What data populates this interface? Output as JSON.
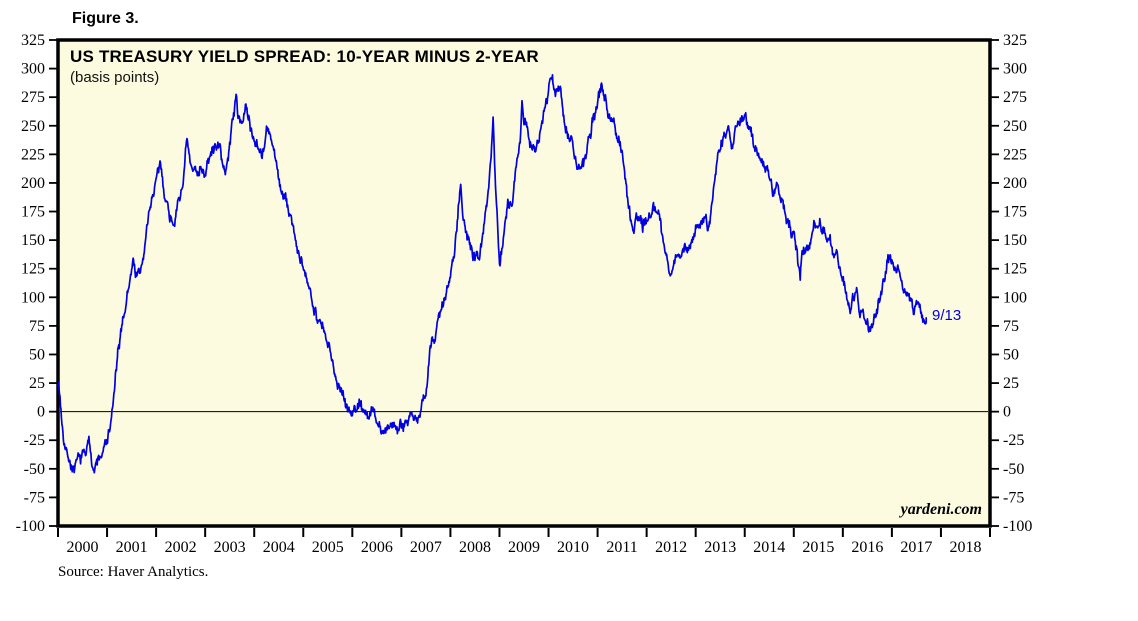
{
  "figure_label": "Figure 3.",
  "source_note": "Source: Haver Analytics.",
  "watermark": "yardeni.com",
  "annotation": "9/13",
  "colors": {
    "line": "#0000e0",
    "plot_bg": "#fcfbe0",
    "border": "#000000",
    "annotation_text": "#0000dd"
  },
  "chart_data": {
    "type": "line",
    "title": "US TREASURY YIELD SPREAD: 10-YEAR MINUS 2-YEAR",
    "subtitle": "(basis points)",
    "ylabel": "basis points",
    "x_range": [
      2000,
      2019
    ],
    "y_range": [
      -100,
      325
    ],
    "y_tick_step": 25,
    "grid": false,
    "zero_line": true,
    "legend_position": "none",
    "y_ticks": [
      325,
      300,
      275,
      250,
      225,
      200,
      175,
      150,
      125,
      100,
      75,
      50,
      25,
      0,
      -25,
      -50,
      -75,
      -100
    ],
    "x_tick_labels": [
      "2000",
      "2001",
      "2002",
      "2003",
      "2004",
      "2005",
      "2006",
      "2007",
      "2008",
      "2009",
      "2010",
      "2011",
      "2012",
      "2013",
      "2014",
      "2015",
      "2016",
      "2017",
      "2018"
    ],
    "last_point_label": "9/13",
    "last_point_value": 82,
    "series": [
      {
        "name": "US Treasury 10-Year Minus 2-Year Yield Spread",
        "points": [
          [
            2000.0,
            28
          ],
          [
            2000.04,
            12
          ],
          [
            2000.08,
            -8
          ],
          [
            2000.13,
            -22
          ],
          [
            2000.17,
            -30
          ],
          [
            2000.25,
            -42
          ],
          [
            2000.33,
            -50
          ],
          [
            2000.42,
            -46
          ],
          [
            2000.5,
            -41
          ],
          [
            2000.58,
            -34
          ],
          [
            2000.63,
            -27
          ],
          [
            2000.67,
            -34
          ],
          [
            2000.71,
            -44
          ],
          [
            2000.75,
            -49
          ],
          [
            2000.83,
            -42
          ],
          [
            2000.92,
            -36
          ],
          [
            2001.0,
            -27
          ],
          [
            2001.08,
            -10
          ],
          [
            2001.13,
            8
          ],
          [
            2001.17,
            28
          ],
          [
            2001.25,
            55
          ],
          [
            2001.33,
            82
          ],
          [
            2001.42,
            105
          ],
          [
            2001.5,
            122
          ],
          [
            2001.54,
            133
          ],
          [
            2001.58,
            124
          ],
          [
            2001.67,
            118
          ],
          [
            2001.75,
            140
          ],
          [
            2001.83,
            163
          ],
          [
            2001.92,
            188
          ],
          [
            2002.0,
            203
          ],
          [
            2002.08,
            210
          ],
          [
            2002.17,
            194
          ],
          [
            2002.25,
            179
          ],
          [
            2002.33,
            168
          ],
          [
            2002.42,
            176
          ],
          [
            2002.5,
            190
          ],
          [
            2002.58,
            214
          ],
          [
            2002.63,
            236
          ],
          [
            2002.67,
            219
          ],
          [
            2002.75,
            204
          ],
          [
            2002.83,
            211
          ],
          [
            2002.92,
            219
          ],
          [
            2003.0,
            209
          ],
          [
            2003.08,
            219
          ],
          [
            2003.17,
            228
          ],
          [
            2003.25,
            237
          ],
          [
            2003.33,
            224
          ],
          [
            2003.42,
            204
          ],
          [
            2003.5,
            234
          ],
          [
            2003.58,
            264
          ],
          [
            2003.63,
            273
          ],
          [
            2003.67,
            261
          ],
          [
            2003.75,
            254
          ],
          [
            2003.83,
            266
          ],
          [
            2003.92,
            249
          ],
          [
            2004.0,
            241
          ],
          [
            2004.08,
            237
          ],
          [
            2004.17,
            229
          ],
          [
            2004.25,
            246
          ],
          [
            2004.33,
            239
          ],
          [
            2004.42,
            219
          ],
          [
            2004.5,
            204
          ],
          [
            2004.58,
            189
          ],
          [
            2004.67,
            179
          ],
          [
            2004.75,
            169
          ],
          [
            2004.83,
            154
          ],
          [
            2004.92,
            134
          ],
          [
            2005.0,
            119
          ],
          [
            2005.08,
            109
          ],
          [
            2005.17,
            104
          ],
          [
            2005.25,
            94
          ],
          [
            2005.33,
            79
          ],
          [
            2005.42,
            69
          ],
          [
            2005.5,
            54
          ],
          [
            2005.58,
            44
          ],
          [
            2005.67,
            34
          ],
          [
            2005.75,
            24
          ],
          [
            2005.83,
            17
          ],
          [
            2005.92,
            4
          ],
          [
            2006.0,
            -3
          ],
          [
            2006.08,
            3
          ],
          [
            2006.17,
            9
          ],
          [
            2006.25,
            2
          ],
          [
            2006.33,
            -5
          ],
          [
            2006.42,
            -2
          ],
          [
            2006.5,
            -7
          ],
          [
            2006.58,
            -12
          ],
          [
            2006.67,
            -17
          ],
          [
            2006.75,
            -14
          ],
          [
            2006.83,
            -10
          ],
          [
            2006.92,
            -14
          ],
          [
            2007.0,
            -10
          ],
          [
            2007.08,
            -7
          ],
          [
            2007.17,
            -1
          ],
          [
            2007.21,
            4
          ],
          [
            2007.25,
            -3
          ],
          [
            2007.33,
            -9
          ],
          [
            2007.42,
            4
          ],
          [
            2007.5,
            19
          ],
          [
            2007.54,
            34
          ],
          [
            2007.58,
            50
          ],
          [
            2007.63,
            63
          ],
          [
            2007.67,
            54
          ],
          [
            2007.71,
            67
          ],
          [
            2007.75,
            76
          ],
          [
            2007.83,
            94
          ],
          [
            2007.92,
            101
          ],
          [
            2008.0,
            124
          ],
          [
            2008.08,
            144
          ],
          [
            2008.17,
            184
          ],
          [
            2008.21,
            206
          ],
          [
            2008.25,
            181
          ],
          [
            2008.33,
            156
          ],
          [
            2008.42,
            141
          ],
          [
            2008.5,
            131
          ],
          [
            2008.58,
            139
          ],
          [
            2008.67,
            151
          ],
          [
            2008.75,
            184
          ],
          [
            2008.83,
            229
          ],
          [
            2008.87,
            257
          ],
          [
            2008.92,
            201
          ],
          [
            2009.0,
            131
          ],
          [
            2009.08,
            151
          ],
          [
            2009.17,
            189
          ],
          [
            2009.25,
            184
          ],
          [
            2009.33,
            214
          ],
          [
            2009.42,
            247
          ],
          [
            2009.46,
            269
          ],
          [
            2009.5,
            256
          ],
          [
            2009.58,
            246
          ],
          [
            2009.67,
            236
          ],
          [
            2009.75,
            229
          ],
          [
            2009.83,
            244
          ],
          [
            2009.92,
            266
          ],
          [
            2010.0,
            281
          ],
          [
            2010.08,
            287
          ],
          [
            2010.17,
            276
          ],
          [
            2010.25,
            281
          ],
          [
            2010.33,
            256
          ],
          [
            2010.42,
            246
          ],
          [
            2010.5,
            231
          ],
          [
            2010.58,
            216
          ],
          [
            2010.67,
            211
          ],
          [
            2010.75,
            216
          ],
          [
            2010.83,
            236
          ],
          [
            2010.92,
            261
          ],
          [
            2011.0,
            271
          ],
          [
            2011.08,
            284
          ],
          [
            2011.17,
            271
          ],
          [
            2011.25,
            261
          ],
          [
            2011.33,
            256
          ],
          [
            2011.42,
            241
          ],
          [
            2011.5,
            226
          ],
          [
            2011.58,
            199
          ],
          [
            2011.63,
            181
          ],
          [
            2011.67,
            171
          ],
          [
            2011.75,
            164
          ],
          [
            2011.83,
            176
          ],
          [
            2011.92,
            164
          ],
          [
            2012.0,
            169
          ],
          [
            2012.08,
            173
          ],
          [
            2012.17,
            181
          ],
          [
            2012.25,
            174
          ],
          [
            2012.33,
            154
          ],
          [
            2012.42,
            134
          ],
          [
            2012.5,
            121
          ],
          [
            2012.58,
            131
          ],
          [
            2012.67,
            141
          ],
          [
            2012.75,
            146
          ],
          [
            2012.83,
            139
          ],
          [
            2012.92,
            149
          ],
          [
            2013.0,
            159
          ],
          [
            2013.08,
            166
          ],
          [
            2013.17,
            171
          ],
          [
            2013.25,
            161
          ],
          [
            2013.33,
            176
          ],
          [
            2013.42,
            211
          ],
          [
            2013.5,
            226
          ],
          [
            2013.58,
            241
          ],
          [
            2013.67,
            247
          ],
          [
            2013.75,
            231
          ],
          [
            2013.83,
            246
          ],
          [
            2013.92,
            256
          ],
          [
            2014.0,
            263
          ],
          [
            2014.08,
            246
          ],
          [
            2014.17,
            236
          ],
          [
            2014.25,
            229
          ],
          [
            2014.33,
            221
          ],
          [
            2014.42,
            216
          ],
          [
            2014.5,
            206
          ],
          [
            2014.58,
            196
          ],
          [
            2014.67,
            199
          ],
          [
            2014.75,
            186
          ],
          [
            2014.83,
            176
          ],
          [
            2014.92,
            161
          ],
          [
            2015.0,
            149
          ],
          [
            2015.08,
            129
          ],
          [
            2015.13,
            121
          ],
          [
            2015.17,
            137
          ],
          [
            2015.25,
            144
          ],
          [
            2015.33,
            154
          ],
          [
            2015.42,
            169
          ],
          [
            2015.5,
            172
          ],
          [
            2015.58,
            161
          ],
          [
            2015.67,
            151
          ],
          [
            2015.75,
            146
          ],
          [
            2015.83,
            139
          ],
          [
            2015.92,
            131
          ],
          [
            2016.0,
            121
          ],
          [
            2016.08,
            104
          ],
          [
            2016.17,
            96
          ],
          [
            2016.25,
            104
          ],
          [
            2016.33,
            94
          ],
          [
            2016.42,
            87
          ],
          [
            2016.5,
            79
          ],
          [
            2016.58,
            76
          ],
          [
            2016.67,
            84
          ],
          [
            2016.75,
            96
          ],
          [
            2016.83,
            111
          ],
          [
            2016.92,
            129
          ],
          [
            2017.0,
            126
          ],
          [
            2017.08,
            121
          ],
          [
            2017.17,
            114
          ],
          [
            2017.25,
            109
          ],
          [
            2017.33,
            99
          ],
          [
            2017.42,
            91
          ],
          [
            2017.5,
            94
          ],
          [
            2017.58,
            84
          ],
          [
            2017.63,
            79
          ],
          [
            2017.67,
            77
          ],
          [
            2017.7,
            82
          ]
        ]
      }
    ]
  }
}
